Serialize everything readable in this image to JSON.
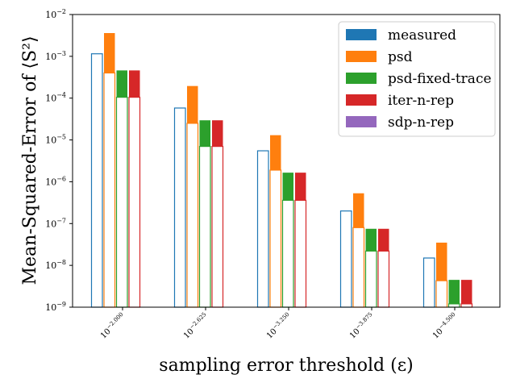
{
  "chart_data": {
    "type": "bar",
    "y_scale": "log",
    "ylim": [
      1e-09,
      0.01
    ],
    "ylabel": "Mean-Squared-Error of ⟨S²⟩",
    "xlabel": "sampling error threshold (ε)",
    "y_ticks": [
      {
        "value": 1e-09,
        "base": "10",
        "exp": "−9"
      },
      {
        "value": 1e-08,
        "base": "10",
        "exp": "−8"
      },
      {
        "value": 1e-07,
        "base": "10",
        "exp": "−7"
      },
      {
        "value": 1e-06,
        "base": "10",
        "exp": "−6"
      },
      {
        "value": 1e-05,
        "base": "10",
        "exp": "−5"
      },
      {
        "value": 0.0001,
        "base": "10",
        "exp": "−4"
      },
      {
        "value": 0.001,
        "base": "10",
        "exp": "−3"
      },
      {
        "value": 0.01,
        "base": "10",
        "exp": "−2"
      }
    ],
    "categories": [
      {
        "base": "10",
        "exp": "−2.000"
      },
      {
        "base": "10",
        "exp": "−2.625"
      },
      {
        "base": "10",
        "exp": "−3.250"
      },
      {
        "base": "10",
        "exp": "−3.875"
      },
      {
        "base": "10",
        "exp": "−4.500"
      }
    ],
    "legend_position": "top-right",
    "series": [
      {
        "name": "measured",
        "color": "#1f77b4",
        "values": [
          0.00115,
          5.8e-05,
          5.5e-06,
          2e-07,
          1.5e-08
        ],
        "inner": [
          null,
          null,
          null,
          null,
          null
        ]
      },
      {
        "name": "psd",
        "color": "#ff7f0e",
        "values": [
          0.0036,
          0.000195,
          1.3e-05,
          5.3e-07,
          3.5e-08
        ],
        "inner": [
          0.0004,
          2.5e-05,
          1.9e-06,
          8e-08,
          4.3e-09
        ]
      },
      {
        "name": "psd-fixed-trace",
        "color": "#2ca02c",
        "values": [
          0.00046,
          2.95e-05,
          1.65e-06,
          7.5e-08,
          4.5e-09
        ],
        "inner": [
          0.000105,
          7e-06,
          3.6e-07,
          2.2e-08,
          1.2e-09
        ]
      },
      {
        "name": "iter-n-rep",
        "color": "#d62728",
        "values": [
          0.00046,
          2.95e-05,
          1.65e-06,
          7.5e-08,
          4.5e-09
        ],
        "inner": [
          0.000105,
          7e-06,
          3.6e-07,
          2.2e-08,
          1.2e-09
        ]
      },
      {
        "name": "sdp-n-rep",
        "color": "#9467bd",
        "values": [
          null,
          null,
          null,
          null,
          null
        ],
        "inner": [
          null,
          null,
          null,
          null,
          null
        ]
      }
    ]
  }
}
